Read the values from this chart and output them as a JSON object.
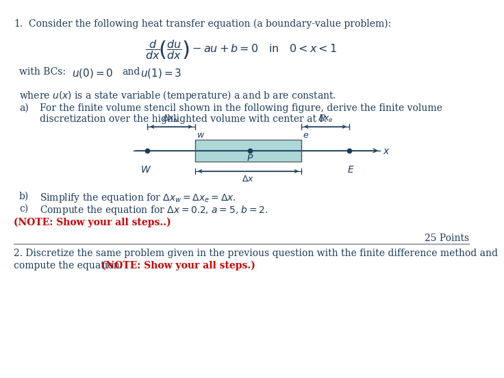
{
  "bg_color": "#ffffff",
  "text_color": "#1a3a5c",
  "red_color": "#cc0000",
  "fig_width": 6.85,
  "fig_height": 5.33,
  "box_fill": "#add8d8",
  "box_edge": "#555555",
  "line1_number": "1.",
  "line1_text": "Consider the following heat transfer equation (a boundary-value problem):",
  "bc_label": "with BCs:",
  "bc_and": "and",
  "where_line": "where $u(x)$ is a state variable (temperature) a and b are constant.",
  "part_a_label": "a)",
  "part_a_line1": "For the finite volume stencil shown in the following figure, derive the finite volume",
  "part_a_line2": "discretization over the highlighted volume with center at P.",
  "part_b_label": "b)",
  "part_b_text": "Simplify the equation for $\\Delta x_w = \\Delta x_e = \\Delta x$.",
  "part_c_label": "c)",
  "part_c_text": "Compute the equation for $\\Delta x = 0.2$, $a = 5$, $b = 2$.",
  "note_text": "(NOTE: Show your all steps..)",
  "points_text": "25 Points",
  "q2_line1": "2. Discretize the same problem given in the previous question with the finite difference method and",
  "q2_line2_plain": "compute the equation.",
  "q2_line2_red": "(NOTE: Show your all steps.)"
}
